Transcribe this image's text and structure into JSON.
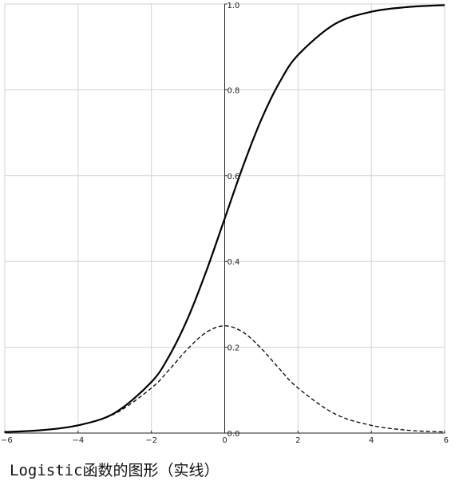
{
  "caption": "Logistic函数的图形（实线）",
  "chart_data": {
    "type": "line",
    "title": "",
    "xlabel": "",
    "ylabel": "",
    "xlim": [
      -6,
      6
    ],
    "ylim": [
      0,
      1
    ],
    "grid": true,
    "x_ticks": [
      -6,
      -4,
      -2,
      0,
      2,
      4,
      6
    ],
    "x_tick_labels": [
      "−6",
      "−4",
      "−2",
      "0",
      "2",
      "4",
      "6"
    ],
    "y_ticks": [
      0.0,
      0.2,
      0.4,
      0.6,
      0.8,
      1.0
    ],
    "y_tick_labels": [
      "0.0",
      "0.2",
      "0.4",
      "0.6",
      "0.8",
      "1.0"
    ],
    "x": [
      -6,
      -5,
      -4,
      -3,
      -2,
      -1.5,
      -1,
      -0.5,
      0,
      0.5,
      1,
      1.5,
      2,
      3,
      4,
      5,
      6
    ],
    "series": [
      {
        "style": "solid",
        "color": "#000000",
        "values": [
          0.0025,
          0.0067,
          0.018,
          0.047,
          0.119,
          0.182,
          0.269,
          0.378,
          0.5,
          0.622,
          0.731,
          0.818,
          0.881,
          0.953,
          0.982,
          0.993,
          0.9975
        ]
      },
      {
        "style": "dashed",
        "color": "#000000",
        "values": [
          0.0025,
          0.0066,
          0.018,
          0.045,
          0.105,
          0.149,
          0.197,
          0.235,
          0.25,
          0.235,
          0.197,
          0.149,
          0.105,
          0.045,
          0.018,
          0.0066,
          0.0025
        ]
      }
    ]
  }
}
